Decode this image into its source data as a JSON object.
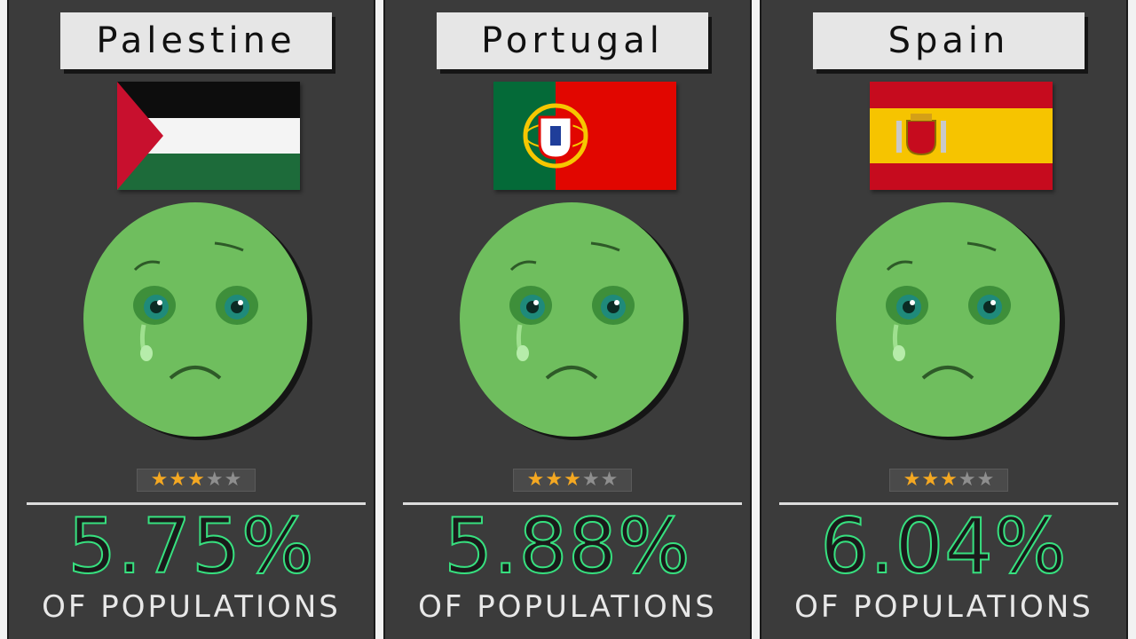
{
  "panels": [
    {
      "country": "Palestine",
      "flag_icon": "palestine-flag",
      "rating": 3,
      "rating_max": 5,
      "percent": "5.75%",
      "caption": "OF POPULATIONS"
    },
    {
      "country": "Portugal",
      "flag_icon": "portugal-flag",
      "rating": 3,
      "rating_max": 5,
      "percent": "5.88%",
      "caption": "OF POPULATIONS"
    },
    {
      "country": "Spain",
      "flag_icon": "spain-flag",
      "rating": 3,
      "rating_max": 5,
      "percent": "6.04%",
      "caption": "OF POPULATIONS"
    }
  ],
  "colors": {
    "panel_bg": "#3b3b3b",
    "face_green": "#6fbe5e",
    "percent_outline": "#37e07f",
    "star_on": "#f4a822",
    "star_off": "#8e8e8e"
  },
  "face_icon": "crying-face-icon"
}
